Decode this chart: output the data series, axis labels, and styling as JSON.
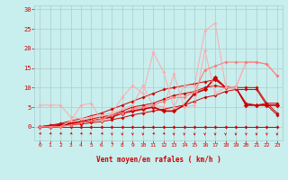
{
  "xlabel": "Vent moyen/en rafales ( km/h )",
  "bg_color": "#c8eeee",
  "grid_color": "#aacccc",
  "xlim": [
    -0.5,
    23.5
  ],
  "ylim": [
    -3.5,
    31
  ],
  "x_ticks": [
    0,
    1,
    2,
    3,
    4,
    5,
    6,
    7,
    8,
    9,
    10,
    11,
    12,
    13,
    14,
    15,
    16,
    17,
    18,
    19,
    20,
    21,
    22,
    23
  ],
  "y_ticks": [
    0,
    5,
    10,
    15,
    20,
    25,
    30
  ],
  "lines": [
    {
      "x": [
        0,
        1,
        2,
        3,
        4,
        5,
        6,
        7,
        8,
        9,
        10,
        11,
        12,
        13,
        14,
        15,
        16,
        17,
        18,
        19,
        20,
        21,
        22,
        23
      ],
      "y": [
        0,
        0,
        0,
        0,
        0,
        0,
        0,
        0,
        0,
        0,
        0,
        0,
        0,
        0,
        0,
        0,
        0,
        0,
        0,
        0,
        0,
        0,
        0,
        0
      ],
      "color": "#cc0000",
      "lw": 0.7,
      "ms": 2.0
    },
    {
      "x": [
        0,
        1,
        2,
        3,
        4,
        5,
        6,
        7,
        8,
        9,
        10,
        11,
        12,
        13,
        14,
        15,
        16,
        17,
        18,
        19,
        20,
        21,
        22,
        23
      ],
      "y": [
        0,
        0,
        0.3,
        0.5,
        0.7,
        1.0,
        1.3,
        1.8,
        2.3,
        3.0,
        3.5,
        4.0,
        4.5,
        5.0,
        5.5,
        6.5,
        7.5,
        8.0,
        9.0,
        9.5,
        9.5,
        9.5,
        5.5,
        3.0
      ],
      "color": "#cc0000",
      "lw": 0.7,
      "ms": 2.0
    },
    {
      "x": [
        0,
        1,
        2,
        3,
        4,
        5,
        6,
        7,
        8,
        9,
        10,
        11,
        12,
        13,
        14,
        15,
        16,
        17,
        18,
        19,
        20,
        21,
        22,
        23
      ],
      "y": [
        0,
        0.3,
        0.6,
        1.0,
        1.4,
        2.0,
        2.5,
        3.0,
        4.0,
        5.0,
        5.5,
        6.0,
        7.0,
        8.0,
        8.5,
        9.0,
        10.0,
        10.5,
        10.0,
        10.0,
        10.0,
        10.0,
        6.0,
        3.5
      ],
      "color": "#cc0000",
      "lw": 0.7,
      "ms": 2.0
    },
    {
      "x": [
        0,
        1,
        2,
        3,
        4,
        5,
        6,
        7,
        8,
        9,
        10,
        11,
        12,
        13,
        14,
        15,
        16,
        17,
        18,
        19,
        20,
        21,
        22,
        23
      ],
      "y": [
        0,
        0.4,
        0.8,
        1.5,
        2.0,
        2.8,
        3.5,
        4.5,
        5.5,
        6.5,
        7.5,
        8.5,
        9.5,
        10.0,
        10.5,
        11.0,
        11.5,
        12.0,
        10.0,
        10.0,
        6.0,
        5.5,
        6.0,
        6.0
      ],
      "color": "#cc0000",
      "lw": 0.7,
      "ms": 2.0
    },
    {
      "x": [
        0,
        1,
        2,
        3,
        4,
        5,
        6,
        7,
        8,
        9,
        10,
        11,
        12,
        13,
        14,
        15,
        16,
        17,
        18,
        19,
        20,
        21,
        22,
        23
      ],
      "y": [
        0,
        0,
        0.3,
        0.8,
        1.2,
        1.5,
        2.0,
        2.5,
        3.5,
        4.0,
        4.5,
        5.0,
        4.0,
        4.0,
        5.5,
        8.5,
        9.5,
        12.5,
        10.0,
        10.0,
        5.5,
        5.5,
        5.5,
        5.5
      ],
      "color": "#cc0000",
      "lw": 1.2,
      "ms": 2.8
    },
    {
      "x": [
        0,
        1,
        2,
        3,
        4,
        5,
        6,
        7,
        8,
        9,
        10,
        11,
        12,
        13,
        14,
        15,
        16,
        17,
        18,
        19,
        20,
        21,
        22,
        23
      ],
      "y": [
        5.5,
        5.5,
        5.5,
        2.5,
        2.0,
        2.5,
        3.0,
        3.5,
        4.5,
        5.5,
        10.5,
        5.5,
        5.0,
        13.5,
        5.0,
        5.5,
        19.5,
        8.5,
        10.0,
        10.0,
        16.5,
        16.5,
        16.0,
        13.0
      ],
      "color": "#ffaaaa",
      "lw": 0.7,
      "ms": 2.0
    },
    {
      "x": [
        0,
        1,
        2,
        3,
        4,
        5,
        6,
        7,
        8,
        9,
        10,
        11,
        12,
        13,
        14,
        15,
        16,
        17,
        18,
        19,
        20,
        21,
        22,
        23
      ],
      "y": [
        0,
        0,
        0,
        1.5,
        5.5,
        6.0,
        1.5,
        3.5,
        7.5,
        10.5,
        8.5,
        19.0,
        14.0,
        5.0,
        10.5,
        10.5,
        24.5,
        26.5,
        10.5,
        10.0,
        16.5,
        16.5,
        16.0,
        13.0
      ],
      "color": "#ffaaaa",
      "lw": 0.7,
      "ms": 2.0
    },
    {
      "x": [
        0,
        1,
        2,
        3,
        4,
        5,
        6,
        7,
        8,
        9,
        10,
        11,
        12,
        13,
        14,
        15,
        16,
        17,
        18,
        19,
        20,
        21,
        22,
        23
      ],
      "y": [
        0,
        0,
        0,
        0.5,
        1.0,
        1.5,
        2.0,
        3.0,
        3.5,
        4.5,
        5.0,
        5.5,
        6.5,
        7.5,
        7.5,
        9.0,
        14.5,
        15.5,
        16.5,
        16.5,
        16.5,
        16.5,
        16.0,
        13.0
      ],
      "color": "#ff7777",
      "lw": 0.7,
      "ms": 2.0
    }
  ],
  "font_color": "#cc0000",
  "arrow_angles_deg": [
    225,
    225,
    225,
    225,
    225,
    315,
    225,
    270,
    270,
    270,
    270,
    225,
    225,
    270,
    270,
    270,
    270,
    270,
    270,
    270,
    270,
    270,
    270,
    270
  ]
}
